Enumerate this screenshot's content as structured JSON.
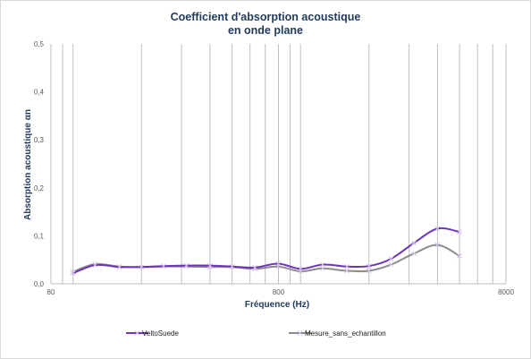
{
  "chart_data": {
    "type": "line",
    "title_line1": "Coefficient d'absorption acoustique",
    "title_line2": "en onde plane",
    "xlabel": "Fréquence (Hz)",
    "ylabel": "Absorption acoustique αn",
    "x_scale": "log",
    "xlim": [
      80,
      8000
    ],
    "ylim": [
      0,
      0.5
    ],
    "x_ticks": [
      "80",
      "800",
      "8000"
    ],
    "x_tick_values": [
      80,
      800,
      8000
    ],
    "y_ticks": [
      "0,0",
      "0,1",
      "0,2",
      "0,3",
      "0,4",
      "0,5"
    ],
    "y_tick_values": [
      0,
      0.1,
      0.2,
      0.3,
      0.4,
      0.5
    ],
    "grid": "vertical",
    "legend_position": "bottom",
    "series": [
      {
        "name": "VeltoSuede",
        "color": "#6a35b8",
        "x": [
          100,
          125,
          160,
          200,
          250,
          315,
          400,
          500,
          630,
          800,
          1000,
          1250,
          1600,
          2000,
          2500,
          3150,
          4000,
          5000
        ],
        "y": [
          0.022,
          0.039,
          0.035,
          0.035,
          0.037,
          0.038,
          0.038,
          0.036,
          0.034,
          0.042,
          0.031,
          0.04,
          0.036,
          0.037,
          0.052,
          0.085,
          0.115,
          0.108
        ]
      },
      {
        "name": "Mesure_sans_echantillon",
        "color": "#8c8c8c",
        "x": [
          100,
          125,
          160,
          200,
          250,
          315,
          400,
          500,
          630,
          800,
          1000,
          1250,
          1600,
          2000,
          2500,
          3150,
          4000,
          5000
        ],
        "y": [
          0.025,
          0.041,
          0.036,
          0.035,
          0.036,
          0.036,
          0.035,
          0.035,
          0.031,
          0.036,
          0.026,
          0.032,
          0.027,
          0.027,
          0.04,
          0.063,
          0.081,
          0.058
        ]
      }
    ]
  }
}
